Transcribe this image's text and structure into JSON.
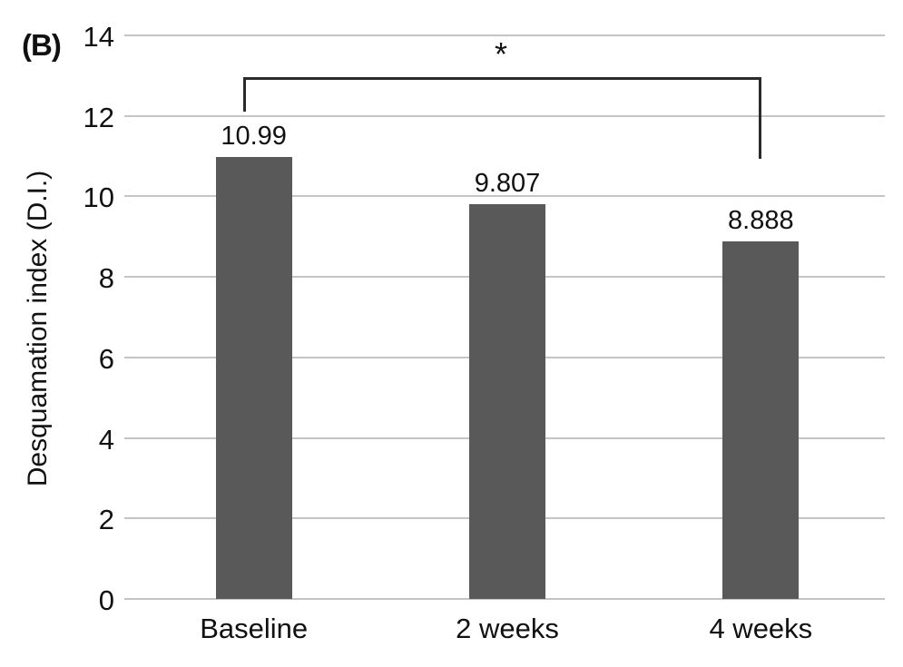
{
  "panel_label": "(B)",
  "chart_data": {
    "type": "bar",
    "title": "",
    "xlabel": "",
    "ylabel": "Desquamation index (D.I.)",
    "categories": [
      "Baseline",
      "2 weeks",
      "4 weeks"
    ],
    "values": [
      10.99,
      9.807,
      8.888
    ],
    "value_labels": [
      "10.99",
      "9.807",
      "8.888"
    ],
    "ylim": [
      0,
      14
    ],
    "yticks": [
      0,
      2,
      4,
      6,
      8,
      10,
      12,
      14
    ],
    "grid": true,
    "legend": "none",
    "bar_color": "#595959",
    "gridline_color": "#c4c4c4",
    "text_color": "#111111",
    "annotation": {
      "type": "significance-bracket",
      "label": "*",
      "from_category": "Baseline",
      "to_category": "4 weeks",
      "line_color": "#2b2b2b",
      "bar_value": 12.96,
      "left_drop_to": 12.1,
      "right_drop_to": 10.93
    }
  }
}
